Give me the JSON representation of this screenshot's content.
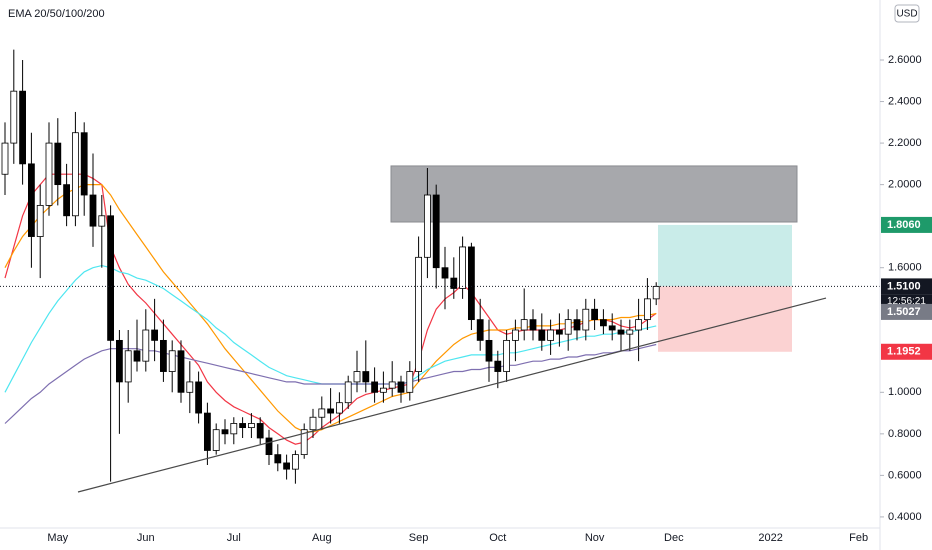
{
  "chart_data": {
    "type": "candlestick",
    "indicator": "EMA 20/50/100/200",
    "currency": "USD",
    "countdown": "12:56:21",
    "ylim": [
      0.337,
      2.889
    ],
    "yticks": [
      {
        "value": 0.4,
        "label": "0.4000"
      },
      {
        "value": 0.6,
        "label": "0.6000"
      },
      {
        "value": 0.8,
        "label": "0.8000"
      },
      {
        "value": 1.0,
        "label": "1.0000"
      },
      {
        "value": 1.6,
        "label": "1.6000"
      },
      {
        "value": 2.0,
        "label": "2.0000"
      },
      {
        "value": 2.2,
        "label": "2.2000"
      },
      {
        "value": 2.4,
        "label": "2.4000"
      },
      {
        "value": 2.6,
        "label": "2.6000"
      }
    ],
    "categories": [
      null,
      null,
      null,
      null,
      null,
      null,
      "May",
      null,
      null,
      null,
      null,
      null,
      null,
      null,
      null,
      null,
      "Jun",
      null,
      null,
      null,
      null,
      null,
      null,
      null,
      null,
      null,
      "Jul",
      null,
      null,
      null,
      null,
      null,
      null,
      null,
      null,
      null,
      "Aug",
      null,
      null,
      null,
      null,
      null,
      null,
      null,
      null,
      null,
      null,
      "Sep",
      null,
      null,
      null,
      null,
      null,
      null,
      null,
      null,
      "Oct",
      null,
      null,
      null,
      null,
      null,
      null,
      null,
      null,
      null,
      null,
      "Nov",
      null,
      null,
      null,
      null,
      null,
      null,
      null,
      null,
      "Dec",
      null,
      null,
      null,
      null,
      null,
      null,
      null,
      null,
      null,
      null,
      "2022",
      null,
      null,
      null,
      null,
      null,
      null,
      null,
      null,
      null,
      "Feb",
      null,
      null
    ],
    "up_color": "#ffffff",
    "down_color": "#000000",
    "open": [
      2.05,
      2.2,
      2.45,
      2.1,
      1.75,
      1.9,
      2.2,
      2.0,
      1.85,
      2.25,
      1.95,
      1.8,
      1.85,
      1.25,
      1.05,
      1.2,
      1.15,
      1.3,
      1.25,
      1.1,
      1.2,
      1.0,
      1.05,
      0.9,
      0.72,
      0.82,
      0.8,
      0.85,
      0.83,
      0.85,
      0.78,
      0.7,
      0.66,
      0.63,
      0.7,
      0.82,
      0.88,
      0.92,
      0.9,
      0.95,
      1.05,
      1.1,
      1.05,
      1.0,
      1.02,
      1.05,
      1.0,
      1.1,
      1.65,
      1.95,
      1.6,
      1.55,
      1.5,
      1.7,
      1.35,
      1.25,
      1.15,
      1.1,
      1.25,
      1.3,
      1.35,
      1.3,
      1.25,
      1.3,
      1.28,
      1.35,
      1.3,
      1.4,
      1.35,
      1.32,
      1.3,
      1.28,
      1.3,
      1.35,
      1.45,
      null,
      null,
      null,
      null,
      null,
      null,
      null,
      null,
      null,
      null,
      null,
      null,
      null,
      null,
      null,
      null,
      null,
      null,
      null,
      null,
      null,
      null,
      null,
      null,
      null
    ],
    "high": [
      2.3,
      2.65,
      2.6,
      2.25,
      2.0,
      2.3,
      2.32,
      2.1,
      2.35,
      2.3,
      2.15,
      1.95,
      1.9,
      1.3,
      1.3,
      1.35,
      1.4,
      1.45,
      1.35,
      1.25,
      1.25,
      1.15,
      1.1,
      0.95,
      0.85,
      0.87,
      0.88,
      0.88,
      0.9,
      0.88,
      0.82,
      0.75,
      0.7,
      0.72,
      0.85,
      0.92,
      0.98,
      1.02,
      1.0,
      1.08,
      1.2,
      1.25,
      1.12,
      1.1,
      1.15,
      1.08,
      1.15,
      1.75,
      2.08,
      2.0,
      1.7,
      1.65,
      1.75,
      1.72,
      1.45,
      1.35,
      1.2,
      1.3,
      1.35,
      1.5,
      1.4,
      1.38,
      1.35,
      1.38,
      1.4,
      1.4,
      1.45,
      1.45,
      1.4,
      1.38,
      1.35,
      1.35,
      1.45,
      1.55,
      1.53,
      null,
      null,
      null,
      null,
      null,
      null,
      null,
      null,
      null,
      null,
      null,
      null,
      null,
      null,
      null,
      null,
      null,
      null,
      null,
      null,
      null,
      null,
      null,
      null,
      null
    ],
    "low": [
      1.95,
      2.1,
      2.0,
      1.6,
      1.55,
      1.85,
      1.9,
      1.8,
      1.8,
      1.85,
      1.7,
      1.6,
      0.57,
      0.8,
      0.95,
      1.1,
      1.1,
      1.15,
      1.05,
      1.0,
      0.95,
      0.9,
      0.85,
      0.65,
      0.7,
      0.75,
      0.75,
      0.78,
      0.78,
      0.75,
      0.65,
      0.62,
      0.58,
      0.56,
      0.68,
      0.78,
      0.82,
      0.85,
      0.85,
      0.92,
      1.0,
      1.0,
      0.95,
      0.95,
      0.98,
      0.95,
      0.96,
      1.05,
      1.55,
      1.5,
      1.4,
      1.45,
      1.45,
      1.3,
      1.2,
      1.05,
      1.02,
      1.05,
      1.15,
      1.25,
      1.25,
      1.2,
      1.18,
      1.22,
      1.2,
      1.25,
      1.25,
      1.3,
      1.28,
      1.25,
      1.2,
      1.2,
      1.15,
      1.3,
      1.42,
      null,
      null,
      null,
      null,
      null,
      null,
      null,
      null,
      null,
      null,
      null,
      null,
      null,
      null,
      null,
      null,
      null,
      null,
      null,
      null,
      null,
      null,
      null,
      null,
      null
    ],
    "close": [
      2.2,
      2.45,
      2.1,
      1.75,
      1.9,
      2.2,
      2.0,
      1.85,
      2.25,
      1.95,
      1.8,
      1.85,
      1.25,
      1.05,
      1.2,
      1.15,
      1.3,
      1.25,
      1.1,
      1.2,
      1.0,
      1.05,
      0.9,
      0.72,
      0.82,
      0.8,
      0.85,
      0.83,
      0.85,
      0.78,
      0.7,
      0.66,
      0.63,
      0.7,
      0.82,
      0.88,
      0.92,
      0.9,
      0.95,
      1.05,
      1.1,
      1.05,
      1.0,
      1.02,
      1.05,
      1.0,
      1.1,
      1.65,
      1.95,
      1.6,
      1.55,
      1.5,
      1.7,
      1.35,
      1.25,
      1.15,
      1.1,
      1.25,
      1.3,
      1.35,
      1.3,
      1.25,
      1.3,
      1.28,
      1.35,
      1.3,
      1.4,
      1.35,
      1.32,
      1.3,
      1.28,
      1.3,
      1.35,
      1.45,
      1.51,
      null,
      null,
      null,
      null,
      null,
      null,
      null,
      null,
      null,
      null,
      null,
      null,
      null,
      null,
      null,
      null,
      null,
      null,
      null,
      null,
      null,
      null,
      null,
      null,
      null
    ],
    "series": [
      {
        "type": "line",
        "color": "#f23645",
        "values": [
          1.55,
          1.7,
          1.85,
          1.95,
          2.0,
          2.05,
          2.05,
          2.05,
          2.05,
          2.05,
          2.03,
          2.0,
          1.7,
          1.6,
          1.52,
          1.47,
          1.43,
          1.38,
          1.33,
          1.28,
          1.23,
          1.18,
          1.13,
          1.05,
          1.0,
          0.96,
          0.93,
          0.91,
          0.89,
          0.87,
          0.83,
          0.8,
          0.77,
          0.75,
          0.76,
          0.79,
          0.83,
          0.86,
          0.89,
          0.93,
          0.97,
          0.99,
          1.0,
          1.01,
          1.02,
          1.03,
          1.04,
          1.15,
          1.3,
          1.4,
          1.45,
          1.48,
          1.52,
          1.48,
          1.42,
          1.36,
          1.3,
          1.28,
          1.29,
          1.3,
          1.3,
          1.3,
          1.3,
          1.3,
          1.31,
          1.32,
          1.34,
          1.35,
          1.35,
          1.34,
          1.32,
          1.31,
          1.32,
          1.35,
          1.38,
          null,
          null,
          null,
          null,
          null,
          null,
          null,
          null,
          null,
          null,
          null,
          null,
          null,
          null,
          null,
          null,
          null,
          null,
          null,
          null,
          null,
          null,
          null,
          null,
          null
        ]
      },
      {
        "type": "line",
        "color": "#ff9800",
        "values": [
          1.6,
          1.68,
          1.75,
          1.8,
          1.85,
          1.89,
          1.93,
          1.96,
          1.98,
          2.0,
          2.0,
          2.0,
          1.95,
          1.88,
          1.82,
          1.76,
          1.7,
          1.64,
          1.58,
          1.53,
          1.48,
          1.43,
          1.38,
          1.33,
          1.27,
          1.21,
          1.16,
          1.11,
          1.06,
          1.01,
          0.96,
          0.91,
          0.87,
          0.83,
          0.81,
          0.81,
          0.82,
          0.84,
          0.86,
          0.88,
          0.9,
          0.92,
          0.94,
          0.96,
          0.98,
          0.99,
          1.0,
          1.05,
          1.1,
          1.15,
          1.19,
          1.23,
          1.26,
          1.28,
          1.29,
          1.3,
          1.3,
          1.3,
          1.31,
          1.31,
          1.32,
          1.32,
          1.32,
          1.33,
          1.33,
          1.34,
          1.34,
          1.35,
          1.35,
          1.35,
          1.36,
          1.36,
          1.37,
          1.37,
          1.38,
          null,
          null,
          null,
          null,
          null,
          null,
          null,
          null,
          null,
          null,
          null,
          null,
          null,
          null,
          null,
          null,
          null,
          null,
          null,
          null,
          null,
          null,
          null,
          null,
          null
        ]
      },
      {
        "type": "line",
        "color": "#4ee6f0",
        "values": [
          1.0,
          1.08,
          1.16,
          1.24,
          1.31,
          1.38,
          1.44,
          1.49,
          1.54,
          1.58,
          1.6,
          1.61,
          1.6,
          1.58,
          1.57,
          1.55,
          1.54,
          1.52,
          1.5,
          1.47,
          1.44,
          1.41,
          1.38,
          1.35,
          1.31,
          1.28,
          1.24,
          1.21,
          1.18,
          1.15,
          1.12,
          1.1,
          1.08,
          1.07,
          1.06,
          1.05,
          1.04,
          1.04,
          1.04,
          1.04,
          1.04,
          1.04,
          1.04,
          1.04,
          1.04,
          1.04,
          1.05,
          1.08,
          1.11,
          1.13,
          1.15,
          1.16,
          1.17,
          1.18,
          1.18,
          1.18,
          1.18,
          1.19,
          1.19,
          1.2,
          1.21,
          1.22,
          1.23,
          1.24,
          1.25,
          1.26,
          1.27,
          1.27,
          1.28,
          1.28,
          1.29,
          1.29,
          1.3,
          1.31,
          1.32,
          null,
          null,
          null,
          null,
          null,
          null,
          null,
          null,
          null,
          null,
          null,
          null,
          null,
          null,
          null,
          null,
          null,
          null,
          null,
          null,
          null,
          null,
          null,
          null,
          null
        ]
      },
      {
        "type": "line",
        "color": "#7e6fb0",
        "values": [
          0.85,
          0.89,
          0.93,
          0.97,
          1.0,
          1.04,
          1.07,
          1.1,
          1.13,
          1.16,
          1.18,
          1.2,
          1.21,
          1.21,
          1.21,
          1.21,
          1.2,
          1.2,
          1.19,
          1.18,
          1.17,
          1.16,
          1.15,
          1.14,
          1.13,
          1.12,
          1.11,
          1.1,
          1.09,
          1.08,
          1.07,
          1.06,
          1.05,
          1.05,
          1.04,
          1.04,
          1.04,
          1.04,
          1.04,
          1.04,
          1.04,
          1.04,
          1.04,
          1.04,
          1.04,
          1.04,
          1.05,
          1.06,
          1.07,
          1.08,
          1.09,
          1.1,
          1.1,
          1.11,
          1.11,
          1.12,
          1.12,
          1.13,
          1.13,
          1.14,
          1.15,
          1.15,
          1.16,
          1.16,
          1.17,
          1.17,
          1.18,
          1.18,
          1.19,
          1.19,
          1.2,
          1.2,
          1.21,
          1.22,
          1.23,
          null,
          null,
          null,
          null,
          null,
          null,
          null,
          null,
          null,
          null,
          null,
          null,
          null,
          null,
          null,
          null,
          null,
          null,
          null,
          null,
          null,
          null,
          null,
          null,
          null
        ]
      }
    ],
    "zone": {
      "top": 2.09,
      "bottom": 1.82,
      "color": "#a7a8ac"
    },
    "position": {
      "entry": 1.51,
      "target": 1.806,
      "stop": 1.1952,
      "target_color": "#c9ece9",
      "stop_color": "#fbd2d2"
    },
    "trendline": {
      "start": 0.52,
      "end": 1.454,
      "color": "#4a4a4a"
    },
    "price_labels": [
      {
        "value": 1.806,
        "label": "1.8060",
        "color": "#1e9a6a"
      },
      {
        "value": 1.51,
        "label": "1.5100",
        "color": "#131722"
      },
      {
        "value": 1.5027,
        "label": "1.5027",
        "color": "#787b86"
      },
      {
        "value": 1.1952,
        "label": "1.1952",
        "color": "#f23645"
      }
    ]
  }
}
